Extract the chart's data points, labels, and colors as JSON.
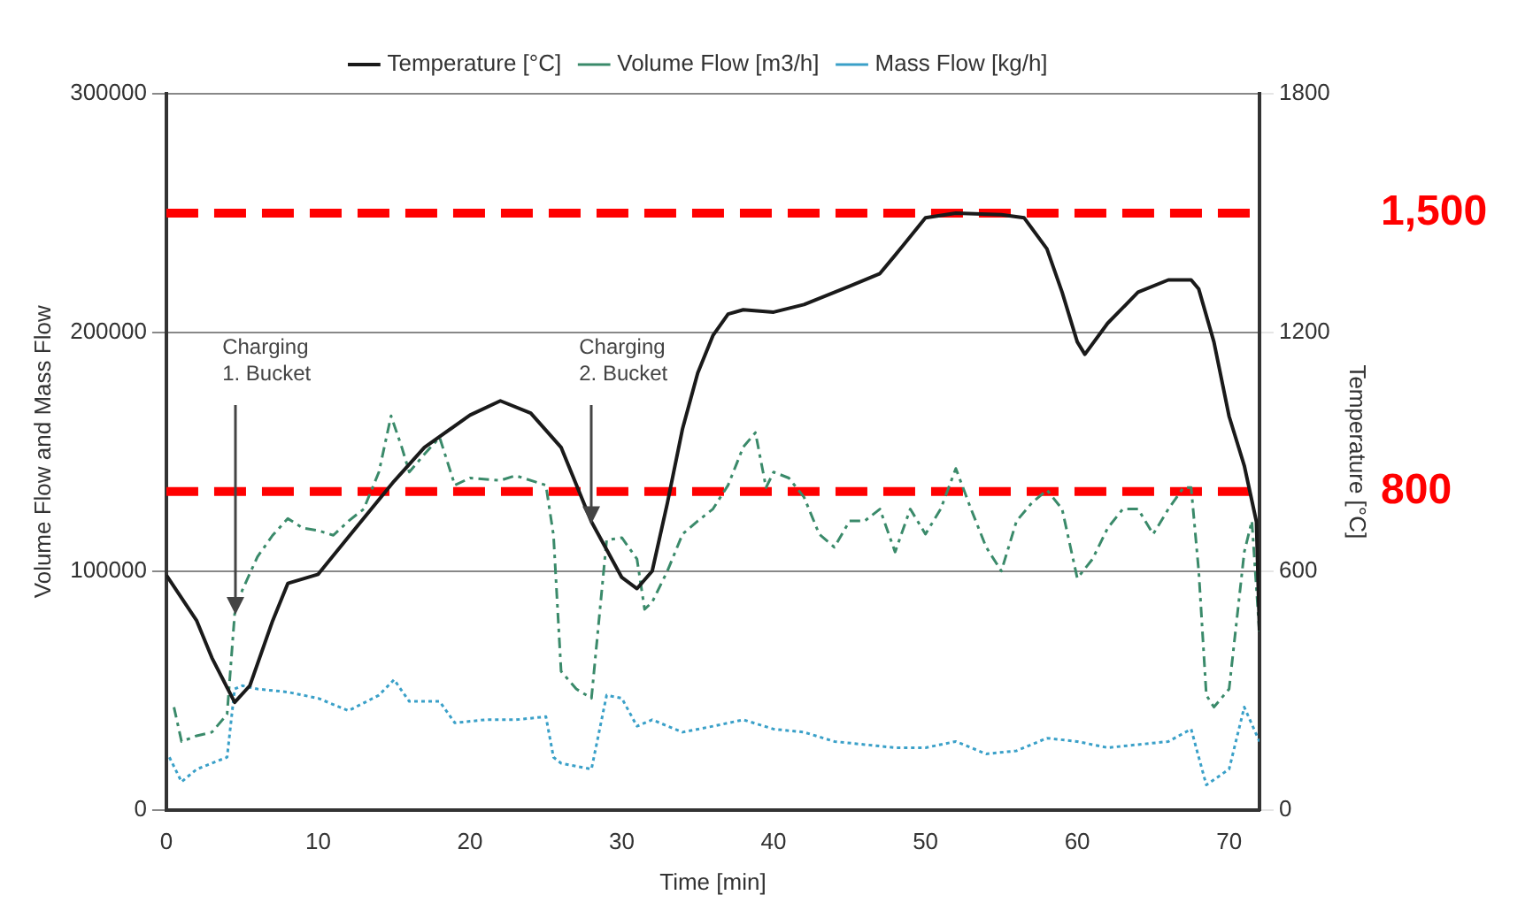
{
  "chart_data": {
    "type": "line",
    "xlabel": "Time [min]",
    "ylabel": "Volume Flow and Mass Flow",
    "y2label": "Temperature [°C]",
    "xlim": [
      0,
      72
    ],
    "xticks": [
      0,
      10,
      20,
      30,
      40,
      50,
      60,
      70
    ],
    "ylim": [
      0,
      300000
    ],
    "yticks": [
      0,
      100000,
      200000,
      300000
    ],
    "y2lim": [
      0,
      1800
    ],
    "y2ticks": [
      0,
      600,
      1200,
      1800
    ],
    "grid": "y",
    "legend": "top",
    "marker": "none",
    "series": [
      {
        "name": "Temperature [°C]",
        "color": "#1a1a1a",
        "axis": "y2",
        "line_style": "solid",
        "x": [
          0,
          2,
          3,
          4.5,
          5.5,
          7,
          8,
          10,
          12,
          15,
          17,
          20,
          22,
          24,
          26,
          28,
          30,
          31,
          32,
          33,
          34,
          35,
          36,
          37,
          38,
          40,
          42,
          45,
          47,
          48,
          50,
          52,
          55,
          56.5,
          58,
          59,
          60,
          60.5,
          62,
          64,
          66,
          67.5,
          68,
          69,
          70,
          71,
          71.8,
          72
        ],
        "values": [
          590,
          475,
          382,
          270,
          312,
          475,
          569,
          592,
          686,
          826,
          911,
          992,
          1028,
          997,
          911,
          724,
          584,
          556,
          600,
          771,
          958,
          1098,
          1192,
          1246,
          1257,
          1251,
          1270,
          1316,
          1348,
          1394,
          1488,
          1500,
          1496,
          1488,
          1410,
          1301,
          1176,
          1145,
          1223,
          1301,
          1332,
          1332,
          1309,
          1176,
          989,
          865,
          724,
          450
        ]
      },
      {
        "name": "Volume Flow [m3/h]",
        "color": "#3a8a6a",
        "line_style": "dashed",
        "x": [
          0.5,
          1,
          2,
          3,
          4,
          4.5,
          5,
          6,
          7,
          8,
          9,
          10,
          11,
          12,
          13,
          14,
          14.8,
          15.5,
          16,
          17,
          18,
          19,
          20,
          22,
          23,
          25,
          25.5,
          26,
          27,
          28,
          29,
          30,
          31,
          31.5,
          32,
          33,
          34,
          35,
          36,
          37,
          38,
          38.8,
          39.5,
          40,
          41,
          42,
          43,
          44,
          45,
          46,
          47,
          48,
          49,
          50,
          51,
          52,
          53,
          54,
          55,
          56,
          57,
          58,
          59,
          60,
          61,
          62,
          63,
          64,
          65,
          66,
          67,
          67.5,
          68,
          68.5,
          69,
          70,
          71,
          71.5,
          72
        ],
        "values": [
          43000,
          28600,
          31000,
          32500,
          40000,
          82000,
          92000,
          106000,
          115000,
          122000,
          118000,
          117000,
          115000,
          121000,
          126000,
          141500,
          165000,
          152000,
          141500,
          149000,
          156000,
          136000,
          139000,
          138000,
          140000,
          136000,
          115000,
          58000,
          50600,
          46700,
          113000,
          114000,
          105000,
          84000,
          87000,
          100000,
          115500,
          121000,
          126000,
          136000,
          152000,
          158000,
          135000,
          141500,
          139000,
          131000,
          115500,
          110000,
          121000,
          121000,
          126000,
          108000,
          126000,
          115500,
          126000,
          143000,
          126000,
          110000,
          100000,
          121000,
          128500,
          134000,
          126000,
          97000,
          105000,
          118000,
          126000,
          126000,
          115500,
          126000,
          135000,
          135000,
          100000,
          48000,
          43000,
          50600,
          108000,
          121000,
          74000
        ]
      },
      {
        "name": "Mass Flow [kg/h]",
        "color": "#3aa0c8",
        "line_style": "dotted",
        "x": [
          0.2,
          1,
          2,
          3,
          4,
          4.5,
          5,
          6,
          8,
          10,
          12,
          14,
          15,
          16,
          18,
          19,
          21,
          23,
          25,
          25.5,
          26,
          27,
          28,
          29,
          30,
          31,
          32,
          34,
          36,
          38,
          40,
          42,
          44,
          46,
          48,
          50,
          52,
          54,
          56,
          58,
          60,
          62,
          64,
          66,
          67.5,
          68,
          68.5,
          70,
          71,
          72
        ],
        "values": [
          22000,
          11700,
          17000,
          19500,
          22000,
          50600,
          52000,
          50600,
          49300,
          46700,
          41500,
          48000,
          54500,
          45400,
          45400,
          36400,
          37700,
          37700,
          39000,
          22000,
          19500,
          18200,
          17000,
          48000,
          46700,
          35000,
          37700,
          32500,
          35000,
          37700,
          33800,
          32500,
          28600,
          27300,
          26000,
          26000,
          28600,
          23400,
          24700,
          30000,
          28600,
          26000,
          27300,
          28600,
          33800,
          22000,
          10400,
          17000,
          43000,
          28600
        ]
      }
    ],
    "annotations": [
      {
        "text": "Charging 1. Bucket",
        "x": 4.5,
        "y": 82000
      },
      {
        "text": "Charging 2. Bucket",
        "x": 28,
        "y": 120000
      }
    ],
    "ref_lines": [
      {
        "axis": "y2",
        "value": 1500,
        "label": "1,500",
        "color": "#ff0000",
        "line_style": "dashed"
      },
      {
        "axis": "y2",
        "value": 800,
        "label": "800",
        "color": "#ff0000",
        "line_style": "dashed"
      }
    ]
  }
}
